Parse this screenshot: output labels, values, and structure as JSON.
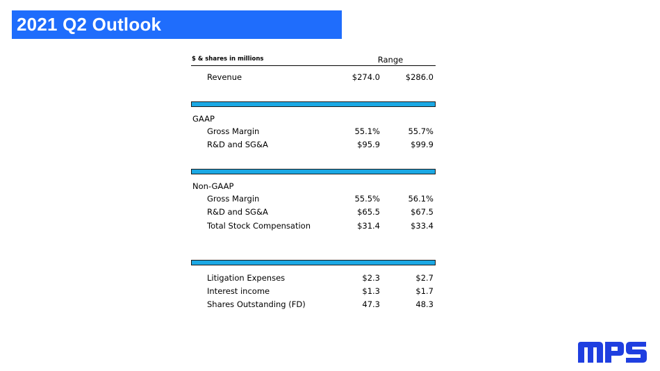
{
  "slide": {
    "title": "2021 Q2 Outlook"
  },
  "table": {
    "units_label": "$ & shares in millions",
    "range_header": "Range",
    "revenue": {
      "label": "Revenue",
      "low": "$274.0",
      "high": "$286.0"
    },
    "gaap": {
      "label": "GAAP",
      "rows": [
        {
          "label": "Gross Margin",
          "low": "55.1%",
          "high": "55.7%"
        },
        {
          "label": "R&D and SG&A",
          "low": "$95.9",
          "high": "$99.9"
        }
      ]
    },
    "non_gaap": {
      "label": "Non-GAAP",
      "rows": [
        {
          "label": "Gross Margin",
          "low": "55.5%",
          "high": "56.1%"
        },
        {
          "label": "R&D and SG&A",
          "low": "$65.5",
          "high": "$67.5"
        },
        {
          "label": "Total Stock Compensation",
          "low": "$31.4",
          "high": "$33.4"
        }
      ]
    },
    "other": {
      "rows": [
        {
          "label": "Litigation Expenses",
          "low": "$2.3",
          "high": "$2.7"
        },
        {
          "label": "Interest income",
          "low": "$1.3",
          "high": "$1.7"
        },
        {
          "label": "Shares Outstanding (FD)",
          "low": "47.3",
          "high": "48.3"
        }
      ]
    }
  },
  "brand": {
    "logo_text": "MPS",
    "logo_color": "#1f3fe0",
    "title_bar_color": "#1f6dfc",
    "band_color": "#1ba8e4"
  }
}
